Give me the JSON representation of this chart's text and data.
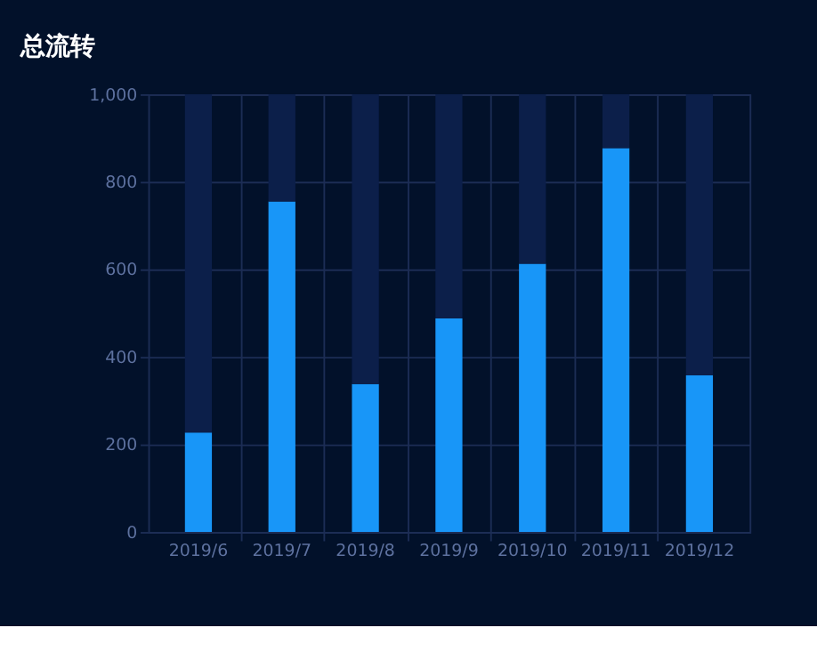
{
  "chart_data": {
    "type": "bar",
    "title": "总流转",
    "categories": [
      "2019/6",
      "2019/7",
      "2019/8",
      "2019/9",
      "2019/10",
      "2019/11",
      "2019/12"
    ],
    "series": [
      {
        "color": "#1896f8",
        "values": [
          227,
          755,
          338,
          488,
          613,
          877,
          358
        ]
      },
      {
        "color": "#0c1f4a",
        "values": [
          773,
          245,
          662,
          512,
          387,
          123,
          642
        ]
      }
    ],
    "stacked": true,
    "ylim": [
      0,
      1000
    ],
    "yticks": [
      0,
      200,
      400,
      600,
      800,
      {
        "value": 1000,
        "label": "1,000"
      }
    ],
    "grid": true
  }
}
